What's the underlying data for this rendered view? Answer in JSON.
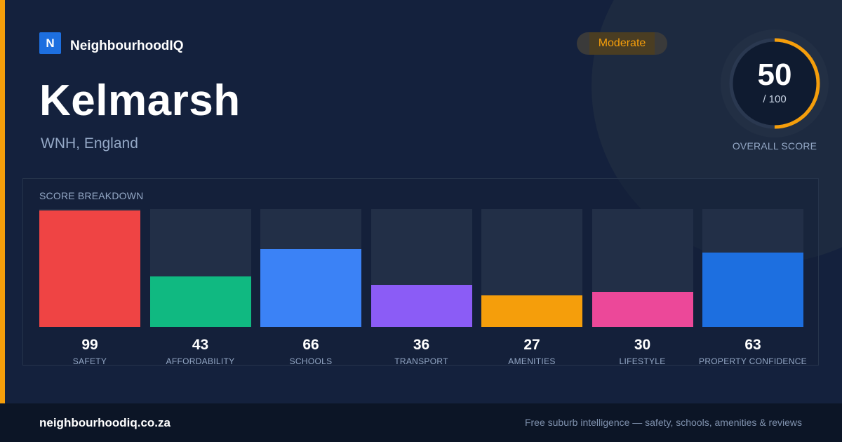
{
  "brand": {
    "logo_letter": "N",
    "name": "NeighbourhoodIQ"
  },
  "title": "Kelmarsh",
  "subtitle": "WNH, England",
  "badge": {
    "label": "Moderate",
    "color": "#f59e0b"
  },
  "overall": {
    "score": "50",
    "out_of": "/ 100",
    "label": "OVERALL SCORE",
    "value": 50,
    "max": 100,
    "ring_color": "#f59e0b"
  },
  "breakdown": {
    "title": "SCORE BREAKDOWN"
  },
  "chart_data": {
    "type": "bar",
    "title": "SCORE BREAKDOWN",
    "categories": [
      "SAFETY",
      "AFFORDABILITY",
      "SCHOOLS",
      "TRANSPORT",
      "AMENITIES",
      "LIFESTYLE",
      "PROPERTY CONFIDENCE"
    ],
    "values": [
      99,
      43,
      66,
      36,
      27,
      30,
      63
    ],
    "colors": [
      "#ef4444",
      "#10b981",
      "#3b82f6",
      "#8b5cf6",
      "#f59e0b",
      "#ec4899",
      "#1d6fe0"
    ],
    "ylim": [
      0,
      100
    ],
    "xlabel": "",
    "ylabel": ""
  },
  "footer": {
    "domain": "neighbourhoodiq.co.za",
    "tagline": "Free suburb intelligence — safety, schools, amenities & reviews"
  }
}
